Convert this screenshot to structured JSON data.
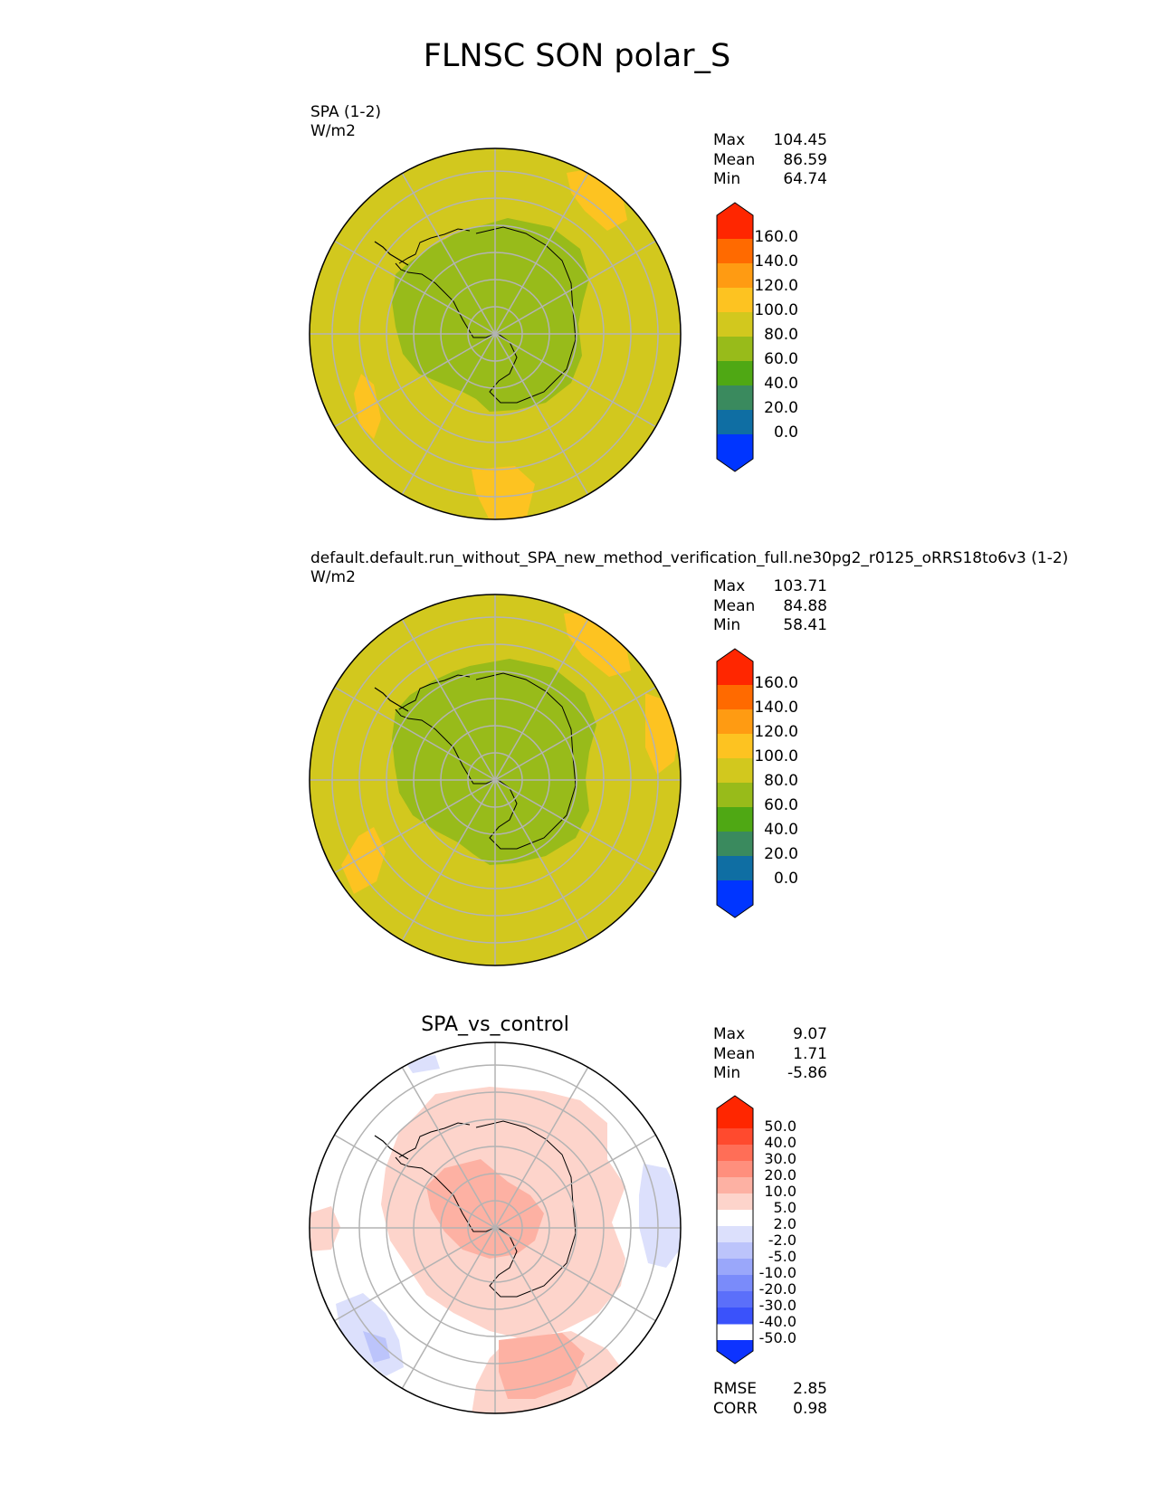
{
  "title": "FLNSC SON polar_S",
  "panels": [
    {
      "label": "SPA (1-2)",
      "units": "W/m2",
      "stats": [
        {
          "label": "Max",
          "value": "104.45"
        },
        {
          "label": "Mean",
          "value": "86.59"
        },
        {
          "label": "Min",
          "value": "64.74"
        }
      ],
      "colorbar_ticks": [
        "160.0",
        "140.0",
        "120.0",
        "100.0",
        "80.0",
        "60.0",
        "40.0",
        "20.0",
        "0.0"
      ]
    },
    {
      "label": "default.default.run_without_SPA_new_method_verification_full.ne30pg2_r0125_oRRS18to6v3 (1-2)",
      "units": "W/m2",
      "stats": [
        {
          "label": "Max",
          "value": "103.71"
        },
        {
          "label": "Mean",
          "value": "84.88"
        },
        {
          "label": "Min",
          "value": "58.41"
        }
      ],
      "colorbar_ticks": [
        "160.0",
        "140.0",
        "120.0",
        "100.0",
        "80.0",
        "60.0",
        "40.0",
        "20.0",
        "0.0"
      ]
    },
    {
      "title": "SPA_vs_control",
      "stats": [
        {
          "label": "Max",
          "value": "9.07"
        },
        {
          "label": "Mean",
          "value": "1.71"
        },
        {
          "label": "Min",
          "value": "-5.86"
        }
      ],
      "colorbar_ticks": [
        "50.0",
        "40.0",
        "30.0",
        "20.0",
        "10.0",
        "5.0",
        "2.0",
        "-2.0",
        "-5.0",
        "-10.0",
        "-20.0",
        "-30.0",
        "-40.0",
        "-50.0"
      ],
      "metrics": [
        {
          "label": "RMSE",
          "value": "2.85"
        },
        {
          "label": "CORR",
          "value": "0.98"
        }
      ]
    }
  ],
  "colors": {
    "abs_colorbar": [
      "#ff2600",
      "#ff6a00",
      "#ff9b12",
      "#fdc321",
      "#d2c81e",
      "#98bb1a",
      "#4fa814",
      "#3a8a5e",
      "#0f6ea3",
      "#0035ff"
    ],
    "diff_colorbar": [
      "#ff2600",
      "#ff4a2e",
      "#ff6e57",
      "#ff8f7d",
      "#fdb1a3",
      "#fdd4cb",
      "#ffffff",
      "#dce0fc",
      "#bcc4fb",
      "#9aa7fa",
      "#7a8bfa",
      "#5b6ffa",
      "#3a52fb",
      "#0d33ff"
    ],
    "ocean_fill": "#d2c81e",
    "land_fill": "#98bb1a",
    "warm_patch": "#fdc321"
  }
}
